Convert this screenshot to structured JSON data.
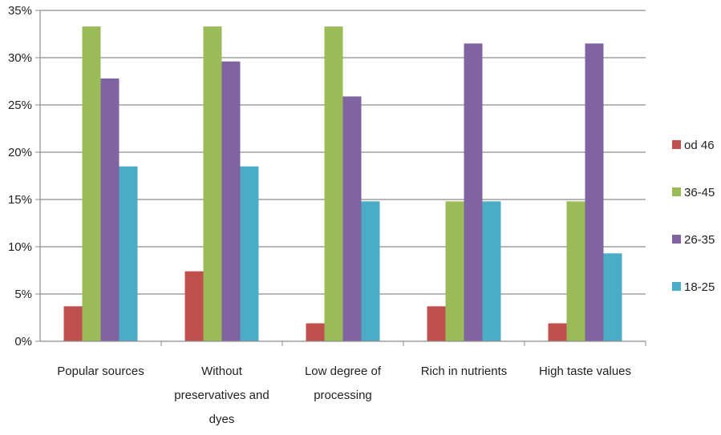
{
  "chart_data": {
    "type": "bar",
    "title": "",
    "xlabel": "",
    "ylabel": "",
    "ylim": [
      0,
      35
    ],
    "yticks": [
      "0%",
      "5%",
      "10%",
      "15%",
      "20%",
      "25%",
      "30%",
      "35%"
    ],
    "grid": true,
    "legend_position": "right",
    "categories": [
      [
        "Popular sources"
      ],
      [
        "Without",
        "preservatives and",
        "dyes"
      ],
      [
        "Low degree of",
        "processing"
      ],
      [
        "Rich in nutrients"
      ],
      [
        "High taste values"
      ]
    ],
    "series": [
      {
        "name": "od 46",
        "color": "#c0504d",
        "values": [
          3.7,
          7.4,
          1.9,
          3.7,
          1.9
        ]
      },
      {
        "name": "36-45",
        "color": "#9bbb59",
        "values": [
          33.3,
          33.3,
          33.3,
          14.8,
          14.8
        ]
      },
      {
        "name": "26-35",
        "color": "#8064a2",
        "values": [
          27.8,
          29.6,
          25.9,
          31.5,
          31.5
        ]
      },
      {
        "name": "18-25",
        "color": "#4bacc6",
        "values": [
          18.5,
          18.5,
          14.8,
          14.8,
          9.3
        ]
      }
    ],
    "legend_order": [
      "od 46",
      "36-45",
      "26-35",
      "18-25"
    ]
  }
}
